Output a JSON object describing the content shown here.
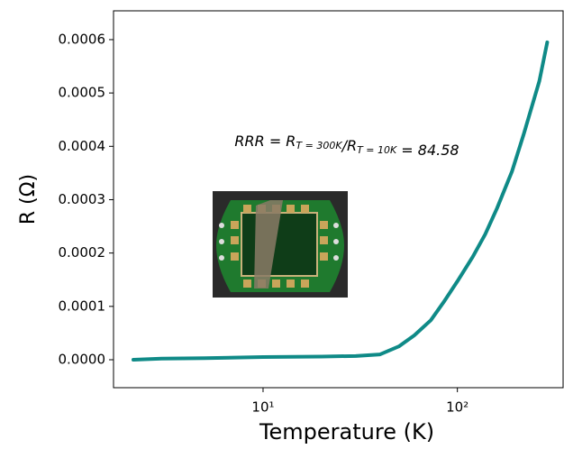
{
  "chart_data": {
    "type": "line",
    "xlabel": "Temperature (K)",
    "ylabel": "R (Ω)",
    "annotation": [
      {
        "main": "RRR = R",
        "sub": "T = 300K"
      },
      {
        "main": "/R",
        "sub": "T = 10K"
      },
      {
        "main": " = 84.58"
      }
    ],
    "log_x": true,
    "grid": false,
    "xlim": [
      1.7,
      350
    ],
    "ylim": [
      -5.24e-05,
      0.000654
    ],
    "xticks": [
      {
        "value": 10,
        "label": "10¹"
      },
      {
        "value": 100,
        "label": "10²"
      }
    ],
    "yticks": [
      {
        "value": 0,
        "label": "0.0000"
      },
      {
        "value": 0.0001,
        "label": "0.0001"
      },
      {
        "value": 0.0002,
        "label": "0.0002"
      },
      {
        "value": 0.0003,
        "label": "0.0003"
      },
      {
        "value": 0.0004,
        "label": "0.0004"
      },
      {
        "value": 0.0005,
        "label": "0.0005"
      },
      {
        "value": 0.0006,
        "label": "0.0006"
      }
    ],
    "x": [
      2.15,
      3,
      5,
      10,
      20,
      30,
      40,
      50,
      60,
      73,
      85,
      100,
      120,
      139,
      160,
      191,
      220,
      264,
      290
    ],
    "series": [
      {
        "color": "#0f8a87",
        "values": [
          0,
          2e-06,
          3e-06,
          5e-06,
          6e-06,
          7e-06,
          1e-05,
          2.5e-05,
          4.56e-05,
          7.4e-05,
          0.000108,
          0.000147,
          0.000193,
          0.000235,
          0.000284,
          0.000353,
          0.000424,
          0.000522,
          0.000595
        ]
      }
    ]
  }
}
